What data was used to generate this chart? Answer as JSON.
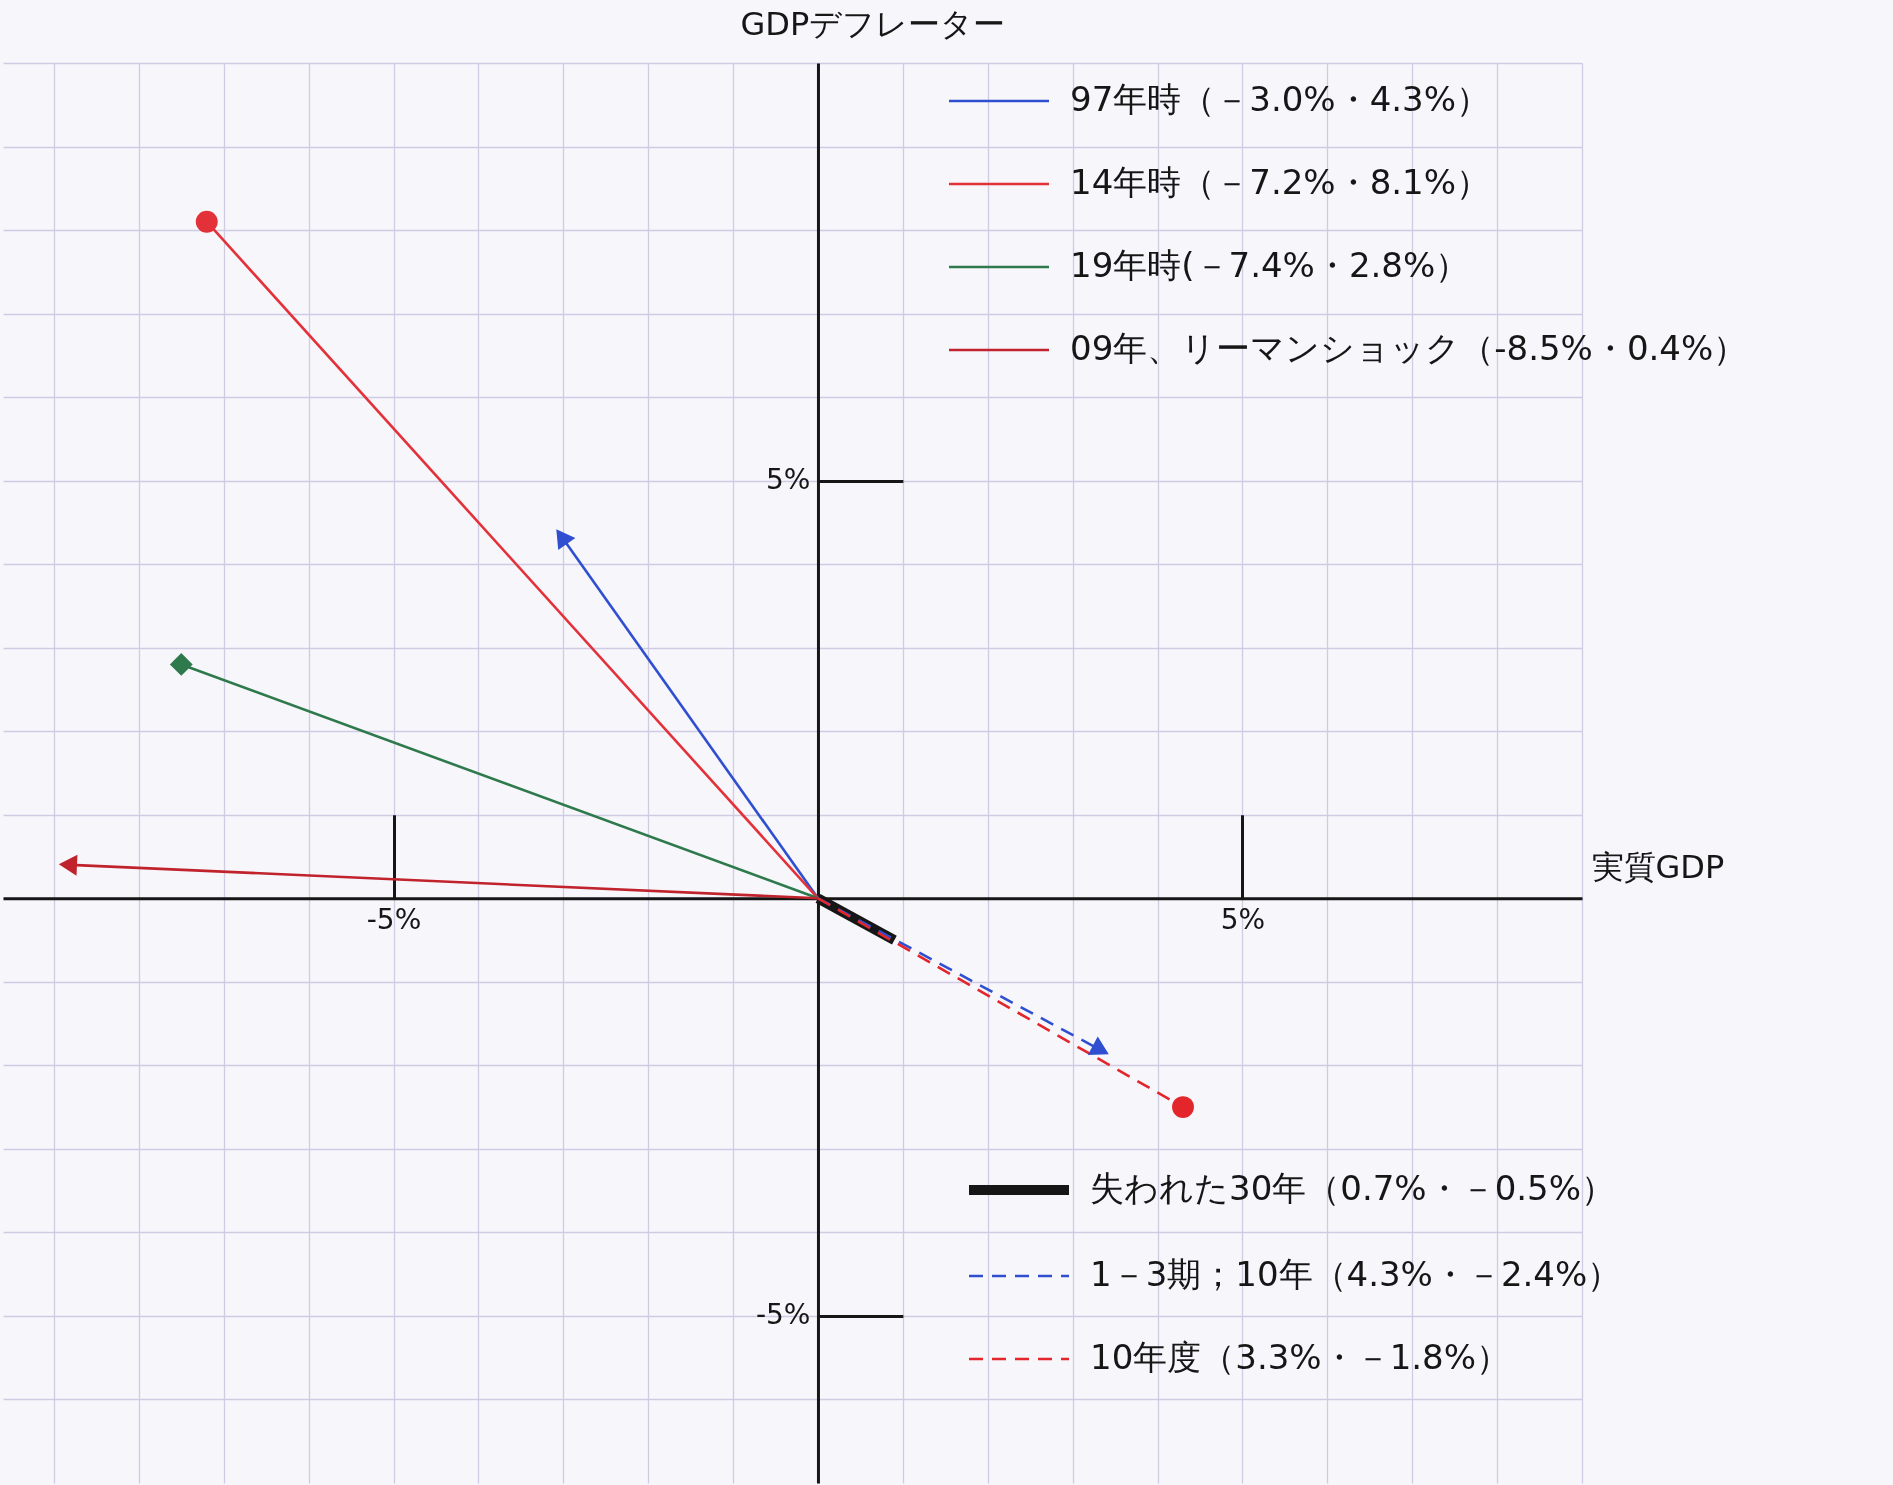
{
  "chart_data": {
    "type": "line",
    "xlabel": "実質GDP",
    "ylabel": "GDPデフレーター",
    "xlim": [
      -9.6,
      9
    ],
    "ylim": [
      -7,
      10
    ],
    "xticks": [
      {
        "value": -9,
        "label": null
      },
      {
        "value": -8,
        "label": null
      },
      {
        "value": -7,
        "label": null
      },
      {
        "value": -6,
        "label": null
      },
      {
        "value": -5,
        "label": "-5%"
      },
      {
        "value": -4,
        "label": null
      },
      {
        "value": -3,
        "label": null
      },
      {
        "value": -2,
        "label": null
      },
      {
        "value": -1,
        "label": null
      },
      {
        "value": 0,
        "label": null
      },
      {
        "value": 1,
        "label": null
      },
      {
        "value": 2,
        "label": null
      },
      {
        "value": 3,
        "label": null
      },
      {
        "value": 4,
        "label": null
      },
      {
        "value": 5,
        "label": "5%"
      },
      {
        "value": 6,
        "label": null
      },
      {
        "value": 7,
        "label": null
      },
      {
        "value": 8,
        "label": null
      },
      {
        "value": 9,
        "label": null
      }
    ],
    "yticks": [
      {
        "value": -6,
        "label": null
      },
      {
        "value": -5,
        "label": "-5%"
      },
      {
        "value": -4,
        "label": null
      },
      {
        "value": -3,
        "label": null
      },
      {
        "value": -2,
        "label": null
      },
      {
        "value": -1,
        "label": null
      },
      {
        "value": 0,
        "label": null
      },
      {
        "value": 1,
        "label": null
      },
      {
        "value": 2,
        "label": null
      },
      {
        "value": 3,
        "label": null
      },
      {
        "value": 4,
        "label": null
      },
      {
        "value": 5,
        "label": "5%"
      },
      {
        "value": 6,
        "label": null
      },
      {
        "value": 7,
        "label": null
      },
      {
        "value": 8,
        "label": null
      },
      {
        "value": 9,
        "label": null
      },
      {
        "value": 10,
        "label": null
      }
    ],
    "grid": true,
    "legend": "right",
    "series": [
      {
        "name": "97年時（－3.0%・4.3%）",
        "color": "#2f4fd0",
        "x": [
          0,
          -3.0
        ],
        "values": [
          0,
          4.3
        ],
        "marker": "triangle",
        "line_style": "solid"
      },
      {
        "name": "14年時（－7.2%・8.1%）",
        "color": "#e3313a",
        "x": [
          0,
          -7.2
        ],
        "values": [
          0,
          8.1
        ],
        "marker": "circle",
        "line_style": "solid"
      },
      {
        "name": "19年時(－7.4%・2.8%）",
        "color": "#2e7a4c",
        "x": [
          0,
          -7.5
        ],
        "values": [
          0,
          2.8
        ],
        "marker": "diamond",
        "line_style": "solid"
      },
      {
        "name": "09年、リーマンショック（-8.5%・0.4%）",
        "color": "#c0232c",
        "x": [
          0,
          -8.8
        ],
        "values": [
          0,
          0.4
        ],
        "marker": "triangle",
        "line_style": "solid"
      },
      {
        "name": "失われた30年（0.7%・－0.5%）",
        "color": "#161616",
        "x": [
          0,
          0.9
        ],
        "values": [
          0,
          -0.5
        ],
        "marker": "none",
        "line_style": "solid"
      },
      {
        "name": "1－3期；10年（4.3%・－2.4%）",
        "color": "#2f4fd0",
        "x": [
          0,
          3.3
        ],
        "values": [
          0,
          -1.8
        ],
        "marker": "triangle",
        "line_style": "dashed"
      },
      {
        "name": "10年度（3.3%・－1.8%）",
        "color": "#e3262b",
        "x": [
          0,
          4.3
        ],
        "values": [
          0,
          -2.5
        ],
        "marker": "circle",
        "line_style": "dashed"
      }
    ]
  }
}
